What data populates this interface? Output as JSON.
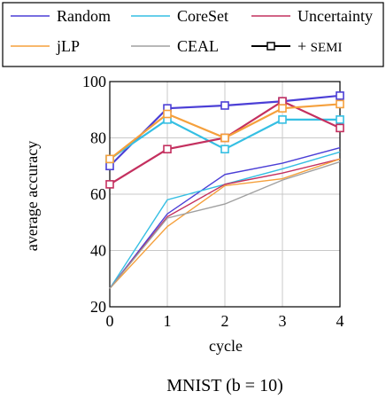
{
  "chart_data": {
    "type": "line",
    "caption": "MNIST (b = 10)",
    "xlabel": "cycle",
    "ylabel": "average accuracy",
    "x": [
      0,
      1,
      2,
      3,
      4
    ],
    "xlim": [
      0,
      4
    ],
    "ylim": [
      20,
      100
    ],
    "xticks": [
      "0",
      "1",
      "2",
      "3",
      "4"
    ],
    "yticks": [
      "20",
      "40",
      "60",
      "80",
      "100"
    ],
    "grid": true,
    "legend_position": "above plot",
    "legend_semi_label": "+ SEMI",
    "series": [
      {
        "name": "Random",
        "color": "#4b3fd6",
        "values": [
          26.5,
          53,
          67,
          71,
          76.5
        ]
      },
      {
        "name": "CoreSet",
        "color": "#35bfe3",
        "values": [
          26.5,
          58,
          63.5,
          69,
          75
        ]
      },
      {
        "name": "Uncertainty",
        "color": "#c4305f",
        "values": [
          26.5,
          52,
          63.5,
          67.5,
          72.5
        ]
      },
      {
        "name": "jLP",
        "color": "#f5a03c",
        "values": [
          26.5,
          48.5,
          63,
          65.5,
          72.5
        ]
      },
      {
        "name": "CEAL",
        "color": "#a0a0a0",
        "values": [
          26.5,
          51.5,
          56.5,
          65,
          71.5
        ]
      }
    ],
    "semi_series": [
      {
        "name": "Random",
        "color": "#4b3fd6",
        "values": [
          70,
          90.5,
          91.5,
          93,
          95
        ]
      },
      {
        "name": "CoreSet",
        "color": "#35bfe3",
        "values": [
          72.5,
          86.5,
          76,
          86.5,
          86.5
        ]
      },
      {
        "name": "Uncertainty",
        "color": "#c4305f",
        "values": [
          63.5,
          76,
          80,
          93,
          83.5
        ]
      },
      {
        "name": "jLP",
        "color": "#f5a03c",
        "values": [
          72.5,
          88.5,
          80,
          90.5,
          92
        ]
      }
    ]
  }
}
